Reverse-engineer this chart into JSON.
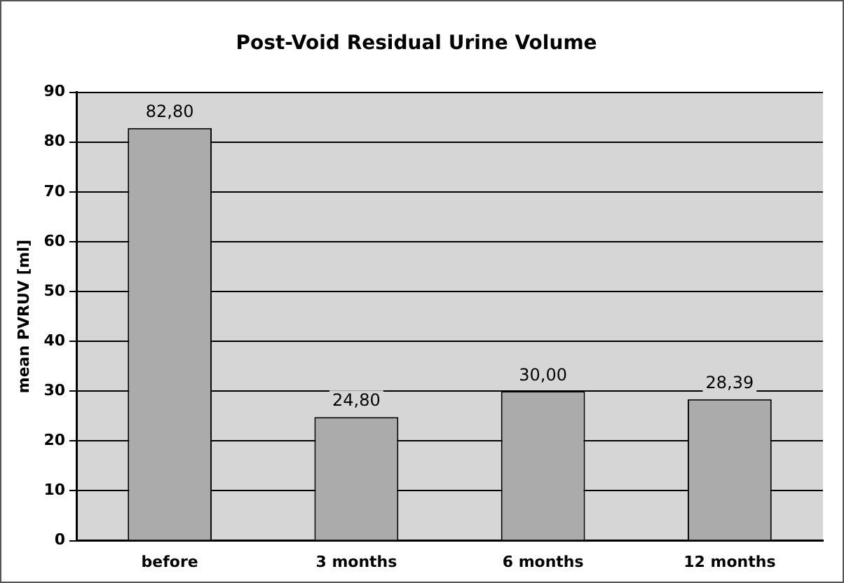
{
  "chart_data": {
    "type": "bar",
    "title": "Post-Void Residual Urine Volume",
    "ylabel": "mean PVRUV [ml]",
    "categories": [
      "before",
      "3 months",
      "6 months",
      "12 months"
    ],
    "values": [
      82.8,
      24.8,
      30.0,
      28.39
    ],
    "value_labels": [
      "82,80",
      "24,80",
      "30,00",
      "28,39"
    ],
    "color": "#ababab",
    "ylim": [
      0,
      90
    ],
    "yticks": [
      0,
      10,
      20,
      30,
      40,
      50,
      60,
      70,
      80,
      90
    ],
    "grid": "y",
    "legend": false
  }
}
